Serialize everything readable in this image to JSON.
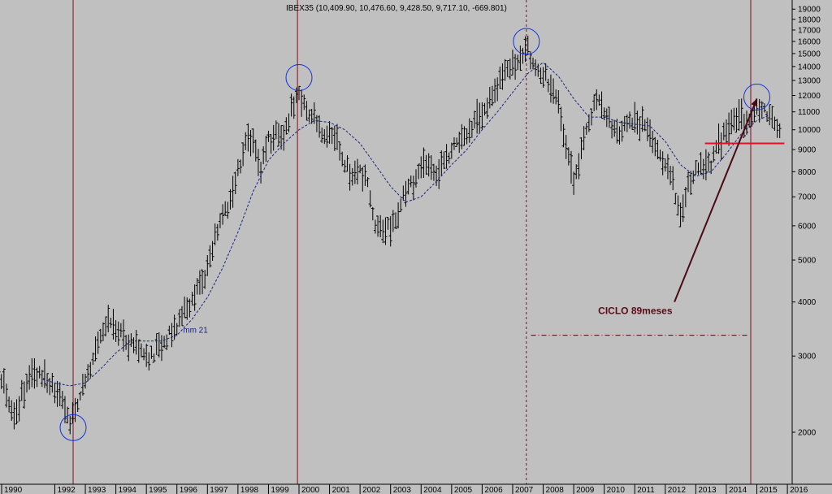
{
  "chart_data": {
    "type": "bar",
    "subtype": "ohlc-monthly-log",
    "title": "IBEX35 (10,409.90, 10,476.60, 9,428.50, 9,717.10, -669.801)",
    "y_scale": "log",
    "ylim": [
      1500,
      20000
    ],
    "y_ticks": [
      {
        "value": 2000,
        "label": "2000"
      },
      {
        "value": 3000,
        "label": "3000"
      },
      {
        "value": 4000,
        "label": "4000"
      },
      {
        "value": 5000,
        "label": "5000"
      },
      {
        "value": 6000,
        "label": "6000"
      },
      {
        "value": 7000,
        "label": "7000"
      },
      {
        "value": 8000,
        "label": "8000"
      },
      {
        "value": 9000,
        "label": "9000"
      },
      {
        "value": 10000,
        "label": "10000"
      },
      {
        "value": 11000,
        "label": "11000"
      },
      {
        "value": 12000,
        "label": "12000"
      },
      {
        "value": 13000,
        "label": "13000"
      },
      {
        "value": 14000,
        "label": "14000"
      },
      {
        "value": 15000,
        "label": "15000"
      },
      {
        "value": 16000,
        "label": "16000"
      },
      {
        "value": 17000,
        "label": "17000"
      },
      {
        "value": 18000,
        "label": "18000"
      },
      {
        "value": 19000,
        "label": "19000"
      }
    ],
    "x_ticks": [
      "1990",
      "1992",
      "1993",
      "1994",
      "1995",
      "1996",
      "1997",
      "1998",
      "1999",
      "2000",
      "2001",
      "2002",
      "2003",
      "2004",
      "2005",
      "2006",
      "2007",
      "2008",
      "2009",
      "2010",
      "2011",
      "2012",
      "2013",
      "2014",
      "2015",
      "2016"
    ],
    "x_tick_years": [
      1990,
      1992,
      1993,
      1994,
      1995,
      1996,
      1997,
      1998,
      1999,
      2000,
      2001,
      2002,
      2003,
      2004,
      2005,
      2006,
      2007,
      2008,
      2009,
      2010,
      2011,
      2012,
      2013,
      2014,
      2015,
      2016
    ],
    "xlim": [
      1990.0,
      2016.3
    ],
    "series": [
      {
        "name": "mm 21",
        "style": "dashed",
        "color": "#1a237e",
        "points": [
          [
            1991.6,
            2650
          ],
          [
            1992.0,
            2600
          ],
          [
            1992.5,
            2560
          ],
          [
            1993.0,
            2600
          ],
          [
            1993.5,
            2800
          ],
          [
            1994.0,
            3050
          ],
          [
            1994.5,
            3250
          ],
          [
            1995.0,
            3250
          ],
          [
            1995.5,
            3250
          ],
          [
            1996.0,
            3350
          ],
          [
            1996.5,
            3650
          ],
          [
            1997.0,
            4100
          ],
          [
            1997.5,
            4800
          ],
          [
            1998.0,
            5800
          ],
          [
            1998.5,
            7200
          ],
          [
            1999.0,
            8500
          ],
          [
            1999.5,
            9300
          ],
          [
            2000.0,
            10000
          ],
          [
            2000.5,
            10500
          ],
          [
            2001.0,
            10400
          ],
          [
            2001.5,
            10000
          ],
          [
            2002.0,
            9300
          ],
          [
            2002.5,
            8300
          ],
          [
            2003.0,
            7400
          ],
          [
            2003.5,
            6800
          ],
          [
            2004.0,
            7000
          ],
          [
            2004.5,
            7600
          ],
          [
            2005.0,
            8300
          ],
          [
            2005.5,
            9000
          ],
          [
            2006.0,
            10000
          ],
          [
            2006.5,
            11000
          ],
          [
            2007.0,
            12200
          ],
          [
            2007.5,
            13500
          ],
          [
            2008.0,
            14300
          ],
          [
            2008.5,
            13300
          ],
          [
            2009.0,
            11800
          ],
          [
            2009.5,
            10700
          ],
          [
            2010.0,
            10700
          ],
          [
            2010.5,
            10400
          ],
          [
            2011.0,
            10300
          ],
          [
            2011.5,
            10200
          ],
          [
            2012.0,
            9400
          ],
          [
            2012.5,
            8300
          ],
          [
            2013.0,
            7800
          ],
          [
            2013.5,
            8000
          ],
          [
            2014.0,
            8800
          ],
          [
            2014.5,
            9800
          ],
          [
            2015.0,
            10500
          ],
          [
            2015.4,
            10800
          ]
        ]
      }
    ],
    "support_line": {
      "value": 9300,
      "x_start": 2013.3,
      "x_end": 2015.9,
      "color": "#e0102a"
    },
    "cycle_lines": [
      {
        "x": 1992.6,
        "style": "solid"
      },
      {
        "x": 1999.95,
        "style": "solid"
      },
      {
        "x": 2007.45,
        "style": "dashed"
      },
      {
        "x": 2014.8,
        "style": "solid"
      }
    ],
    "circled_points": [
      {
        "x": 1992.6,
        "y": 2050
      },
      {
        "x": 2000.0,
        "y": 13200
      },
      {
        "x": 2007.45,
        "y": 16000
      },
      {
        "x": 2015.0,
        "y": 11900
      }
    ],
    "trend_arrow": {
      "from": [
        2012.3,
        4000
      ],
      "to": [
        2015.0,
        11800
      ]
    },
    "cycle_span": {
      "x_start": 2007.6,
      "x_end": 2014.75,
      "y": 3350
    },
    "annotations": [
      {
        "text": "mm 21",
        "x": 1996.2,
        "y": 3400,
        "color": "#1a237e"
      },
      {
        "text": "CICLO 89meses",
        "x": 2009.8,
        "y": 3750,
        "color": "#5a0a1a"
      }
    ],
    "anchors": [
      [
        1990.0,
        2950
      ],
      [
        1990.25,
        2700
      ],
      [
        1990.5,
        2300
      ],
      [
        1990.75,
        2250
      ],
      [
        1991.0,
        2500
      ],
      [
        1991.25,
        2750
      ],
      [
        1991.5,
        2750
      ],
      [
        1991.75,
        2650
      ],
      [
        1992.0,
        2550
      ],
      [
        1992.25,
        2350
      ],
      [
        1992.5,
        2080
      ],
      [
        1992.75,
        2350
      ],
      [
        1993.0,
        2650
      ],
      [
        1993.25,
        3000
      ],
      [
        1993.5,
        3300
      ],
      [
        1993.75,
        3700
      ],
      [
        1994.0,
        3550
      ],
      [
        1994.25,
        3300
      ],
      [
        1994.5,
        3200
      ],
      [
        1994.75,
        3100
      ],
      [
        1995.0,
        3050
      ],
      [
        1995.25,
        3000
      ],
      [
        1995.5,
        3200
      ],
      [
        1995.75,
        3350
      ],
      [
        1996.0,
        3500
      ],
      [
        1996.25,
        3800
      ],
      [
        1996.5,
        4050
      ],
      [
        1996.75,
        4300
      ],
      [
        1997.0,
        4800
      ],
      [
        1997.25,
        5600
      ],
      [
        1997.5,
        6400
      ],
      [
        1997.75,
        6800
      ],
      [
        1998.0,
        8000
      ],
      [
        1998.25,
        9600
      ],
      [
        1998.5,
        9200
      ],
      [
        1998.75,
        8000
      ],
      [
        1999.0,
        9500
      ],
      [
        1999.25,
        9800
      ],
      [
        1999.5,
        9900
      ],
      [
        1999.75,
        11000
      ],
      [
        2000.0,
        12000
      ],
      [
        2000.25,
        11000
      ],
      [
        2000.5,
        10700
      ],
      [
        2000.75,
        10000
      ],
      [
        2001.0,
        9600
      ],
      [
        2001.25,
        9300
      ],
      [
        2001.5,
        8400
      ],
      [
        2001.75,
        8000
      ],
      [
        2002.0,
        8000
      ],
      [
        2002.25,
        7400
      ],
      [
        2002.5,
        6100
      ],
      [
        2002.75,
        6000
      ],
      [
        2003.0,
        6000
      ],
      [
        2003.25,
        6500
      ],
      [
        2003.5,
        7200
      ],
      [
        2003.75,
        7600
      ],
      [
        2004.0,
        8100
      ],
      [
        2004.25,
        8300
      ],
      [
        2004.5,
        8000
      ],
      [
        2004.75,
        8400
      ],
      [
        2005.0,
        9000
      ],
      [
        2005.25,
        9400
      ],
      [
        2005.5,
        9900
      ],
      [
        2005.75,
        10500
      ],
      [
        2006.0,
        10900
      ],
      [
        2006.25,
        11700
      ],
      [
        2006.5,
        12600
      ],
      [
        2006.75,
        13800
      ],
      [
        2007.0,
        14500
      ],
      [
        2007.25,
        14800
      ],
      [
        2007.5,
        15500
      ],
      [
        2007.75,
        14000
      ],
      [
        2008.0,
        13300
      ],
      [
        2008.25,
        12600
      ],
      [
        2008.5,
        11400
      ],
      [
        2008.75,
        9000
      ],
      [
        2009.0,
        7800
      ],
      [
        2009.25,
        9000
      ],
      [
        2009.5,
        10500
      ],
      [
        2009.75,
        11700
      ],
      [
        2010.0,
        11000
      ],
      [
        2010.25,
        10300
      ],
      [
        2010.5,
        9700
      ],
      [
        2010.75,
        10300
      ],
      [
        2011.0,
        10600
      ],
      [
        2011.25,
        10500
      ],
      [
        2011.5,
        9900
      ],
      [
        2011.75,
        8900
      ],
      [
        2012.0,
        8400
      ],
      [
        2012.25,
        7600
      ],
      [
        2012.5,
        6300
      ],
      [
        2012.75,
        7400
      ],
      [
        2013.0,
        8100
      ],
      [
        2013.25,
        8300
      ],
      [
        2013.5,
        8300
      ],
      [
        2013.75,
        9400
      ],
      [
        2014.0,
        10000
      ],
      [
        2014.25,
        10300
      ],
      [
        2014.5,
        10700
      ],
      [
        2014.75,
        10500
      ],
      [
        2015.0,
        11300
      ],
      [
        2015.25,
        11000
      ],
      [
        2015.5,
        10500
      ],
      [
        2015.75,
        9700
      ]
    ]
  }
}
